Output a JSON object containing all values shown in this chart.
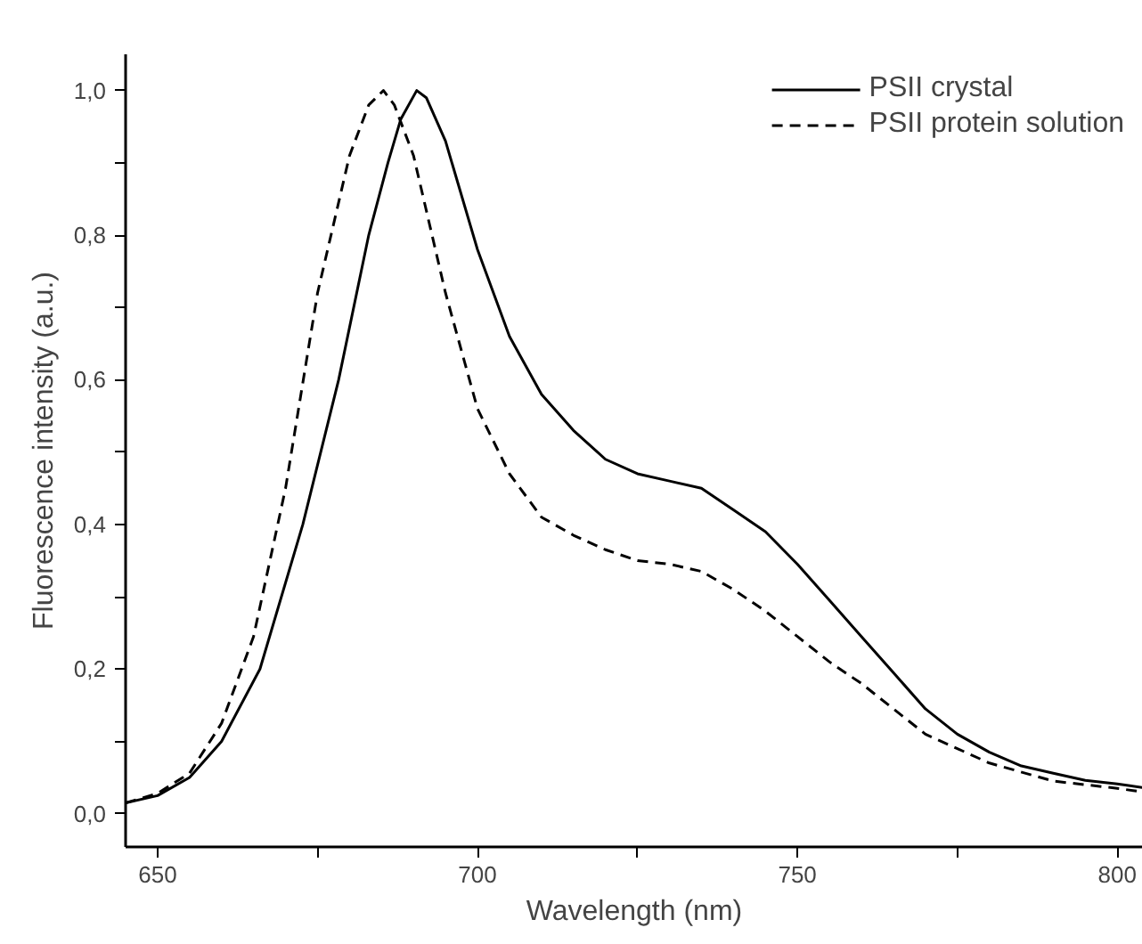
{
  "chart_data": {
    "type": "line",
    "xlabel": "Wavelength (nm)",
    "ylabel": "Fluorescence intensity (a.u.)",
    "xlim": [
      645,
      804
    ],
    "ylim": [
      -0.046,
      1.05
    ],
    "xticks": [
      650,
      {
        "value": 675,
        "label": null
      },
      700,
      {
        "value": 725,
        "label": null
      },
      750,
      {
        "value": 775,
        "label": null
      },
      800
    ],
    "yticks": [
      {
        "value": 0,
        "label": "0,0"
      },
      {
        "value": 0.1,
        "label": null
      },
      {
        "value": 0.2,
        "label": "0,2"
      },
      {
        "value": 0.3,
        "label": null
      },
      {
        "value": 0.4,
        "label": "0,4"
      },
      {
        "value": 0.5,
        "label": null
      },
      {
        "value": 0.6,
        "label": "0,6"
      },
      {
        "value": 0.7,
        "label": null
      },
      {
        "value": 0.8,
        "label": "0,8"
      },
      {
        "value": 0.9,
        "label": null
      },
      {
        "value": 1.0,
        "label": "1,0"
      }
    ],
    "grid": false,
    "legend": "top right",
    "series": [
      {
        "name": "PSII crystal",
        "color": "#000000",
        "line_style": "solid",
        "x": [
          645,
          650,
          655,
          660,
          666,
          672.7,
          678.3,
          683,
          686,
          688,
          690.5,
          692,
          695,
          700,
          705,
          710,
          715,
          720,
          725,
          730,
          735,
          740,
          745,
          750,
          755,
          760,
          765,
          770,
          775,
          780,
          785,
          790,
          795,
          800,
          804
        ],
        "values": [
          0.015,
          0.025,
          0.05,
          0.1,
          0.2,
          0.4,
          0.6,
          0.8,
          0.9,
          0.96,
          1.0,
          0.99,
          0.93,
          0.78,
          0.66,
          0.58,
          0.53,
          0.49,
          0.47,
          0.46,
          0.45,
          0.42,
          0.39,
          0.345,
          0.295,
          0.245,
          0.195,
          0.145,
          0.11,
          0.085,
          0.066,
          0.056,
          0.046,
          0.041,
          0.036
        ]
      },
      {
        "name": "PSII protein solution",
        "color": "#000000",
        "line_style": "dashed",
        "x": [
          645,
          650,
          655,
          660,
          665,
          670,
          675,
          680,
          683,
          685.3,
          687,
          690,
          695,
          700,
          705,
          710,
          715,
          720,
          725,
          730,
          735,
          740,
          745,
          750,
          755,
          760,
          765,
          770,
          775,
          780,
          790,
          800,
          804
        ],
        "values": [
          0.015,
          0.028,
          0.056,
          0.125,
          0.245,
          0.45,
          0.72,
          0.91,
          0.98,
          1.0,
          0.98,
          0.91,
          0.72,
          0.56,
          0.47,
          0.41,
          0.385,
          0.365,
          0.35,
          0.345,
          0.335,
          0.31,
          0.28,
          0.245,
          0.21,
          0.18,
          0.145,
          0.11,
          0.09,
          0.07,
          0.045,
          0.035,
          0.03
        ]
      }
    ]
  }
}
